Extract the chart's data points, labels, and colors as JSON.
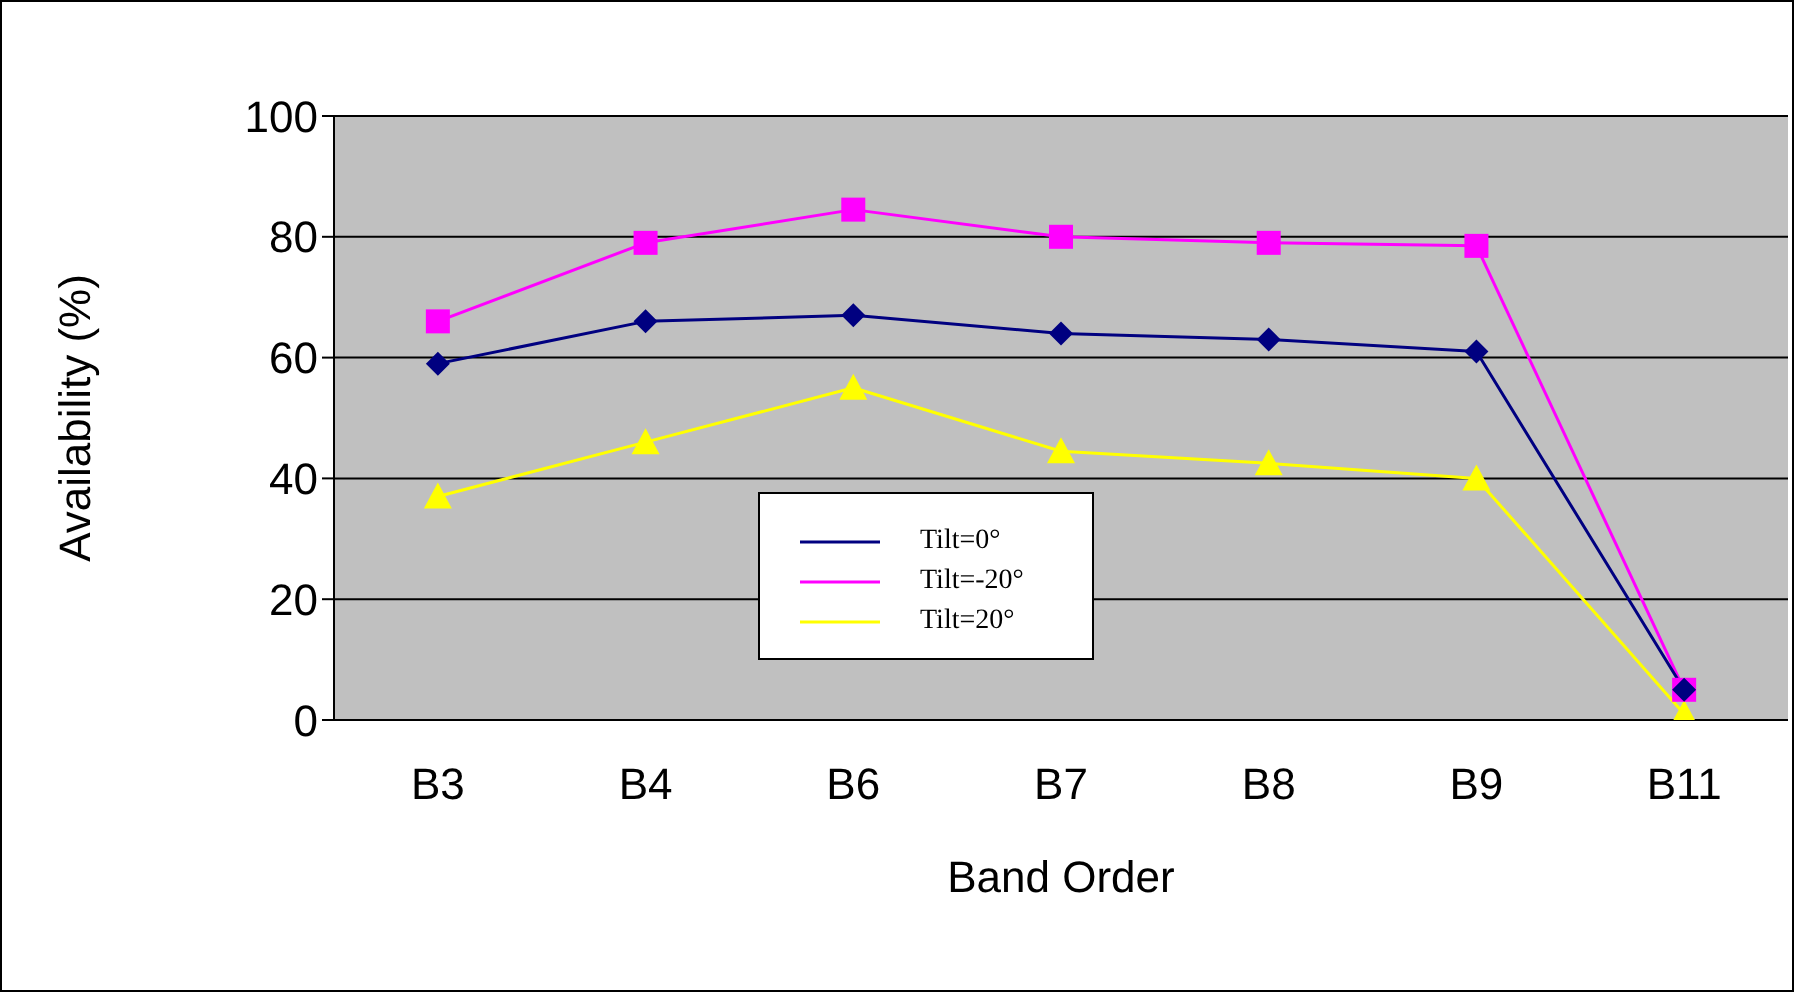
{
  "chart_data": {
    "type": "line",
    "xlabel": "Band Order",
    "ylabel": "Availability (%)",
    "categories": [
      "B3",
      "B4",
      "B6",
      "B7",
      "B8",
      "B9",
      "B11"
    ],
    "series": [
      {
        "name": "Tilt=0°",
        "color": "#000080",
        "marker": "diamond",
        "values": [
          59,
          66,
          67,
          64,
          63,
          61,
          5
        ]
      },
      {
        "name": "Tilt=-20°",
        "color": "#ff00ff",
        "marker": "square",
        "values": [
          66,
          79,
          84.5,
          80,
          79,
          78.5,
          5
        ]
      },
      {
        "name": "Tilt=20°",
        "color": "#ffff00",
        "marker": "triangle",
        "values": [
          37,
          46,
          55,
          44.5,
          42.5,
          40,
          1
        ]
      }
    ],
    "ylim": [
      0,
      100
    ],
    "yticks": [
      0,
      20,
      40,
      60,
      80,
      100
    ],
    "grid": "y",
    "legend": "bottom"
  }
}
